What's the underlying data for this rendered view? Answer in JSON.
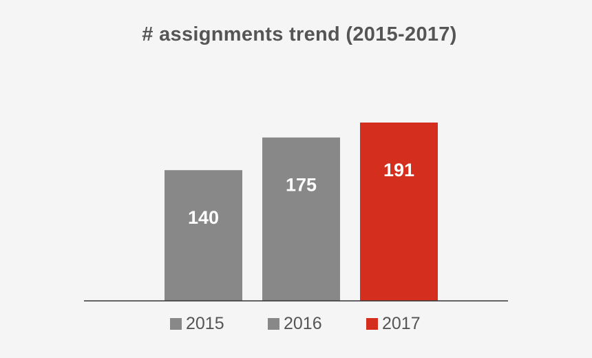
{
  "chart_data": {
    "type": "bar",
    "title": "# assignments trend (2015-2017)",
    "categories": [
      "2015",
      "2016",
      "2017"
    ],
    "values": [
      140,
      175,
      191
    ],
    "data_labels": [
      "140",
      "175",
      "191"
    ],
    "colors": [
      "#888888",
      "#888888",
      "#d32e1e"
    ],
    "ylim": [
      0,
      191
    ],
    "grid": false,
    "legend": {
      "placement": "bottom",
      "entries": [
        {
          "label": "2015",
          "color": "#888888"
        },
        {
          "label": "2016",
          "color": "#888888"
        },
        {
          "label": "2017",
          "color": "#d32e1e"
        }
      ]
    }
  },
  "colors": {
    "background": "#f5f5f5",
    "text": "#555555",
    "axis": "#333333",
    "label_text": "#ffffff"
  }
}
